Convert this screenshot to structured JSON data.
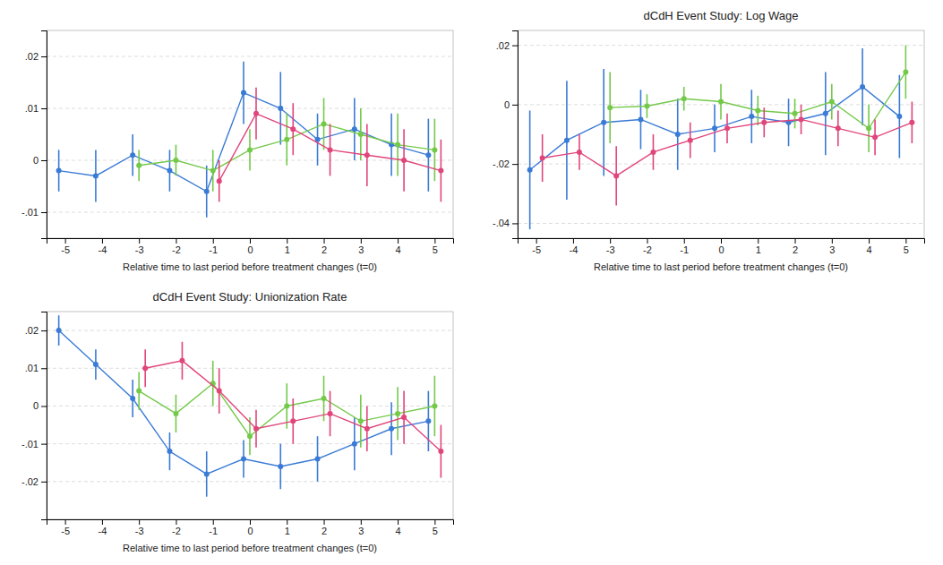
{
  "chart_data": [
    {
      "type": "line",
      "x": [
        -5,
        -4,
        -3,
        -2,
        -1,
        0,
        1,
        2,
        3,
        4,
        5
      ],
      "xlim": [
        -5.5,
        5.5
      ],
      "xticks": [
        -5,
        -4,
        -3,
        -2,
        -1,
        0,
        1,
        2,
        3,
        4,
        5
      ],
      "ylim": [
        -0.015,
        0.025
      ],
      "yticks": [
        {
          "value": -0.01,
          "label": "-.01"
        },
        0,
        {
          "value": 0.01,
          "label": ".01"
        },
        {
          "value": 0.02,
          "label": ".02"
        }
      ],
      "x_label": "Relative time to last period before treatment changes (t=0)",
      "grid": true,
      "marker": "circle",
      "series": [
        {
          "color": "#3a7bd5",
          "values": [
            -0.002,
            -0.003,
            0.001,
            -0.002,
            -0.006,
            0.013,
            0.01,
            0.004,
            0.006,
            0.003,
            0.001
          ],
          "errors": [
            0.004,
            0.005,
            0.004,
            0.004,
            0.005,
            0.006,
            0.007,
            0.005,
            0.006,
            0.006,
            0.007
          ]
        },
        {
          "color": "#74c94a",
          "values": [
            null,
            null,
            -0.001,
            0.0,
            -0.002,
            0.002,
            0.004,
            0.007,
            0.005,
            0.003,
            0.002
          ],
          "errors": [
            null,
            null,
            0.003,
            0.003,
            0.004,
            0.004,
            0.005,
            0.005,
            0.005,
            0.006,
            0.006
          ]
        },
        {
          "color": "#e0457b",
          "values": [
            null,
            null,
            null,
            null,
            -0.004,
            0.009,
            0.006,
            0.002,
            0.001,
            0.0,
            -0.002
          ],
          "errors": [
            null,
            null,
            null,
            null,
            0.004,
            0.005,
            0.005,
            0.005,
            0.006,
            0.006,
            0.006
          ]
        }
      ]
    },
    {
      "type": "line",
      "title": "dCdH Event Study: Log Wage",
      "x": [
        -5,
        -4,
        -3,
        -2,
        -1,
        0,
        1,
        2,
        3,
        4,
        5
      ],
      "xlim": [
        -5.5,
        5.5
      ],
      "xticks": [
        -5,
        -4,
        -3,
        -2,
        -1,
        0,
        1,
        2,
        3,
        4,
        5
      ],
      "ylim": [
        -0.045,
        0.025
      ],
      "yticks": [
        {
          "value": -0.04,
          "label": "-.04"
        },
        {
          "value": -0.02,
          "label": "-.02"
        },
        0,
        {
          "value": 0.02,
          "label": ".02"
        }
      ],
      "x_label": "Relative time to last period before treatment changes (t=0)",
      "grid": true,
      "marker": "circle",
      "series": [
        {
          "color": "#3a7bd5",
          "values": [
            -0.022,
            -0.012,
            -0.006,
            -0.005,
            -0.01,
            -0.008,
            -0.004,
            -0.006,
            -0.003,
            0.006,
            -0.004
          ],
          "errors": [
            0.02,
            0.02,
            0.018,
            0.01,
            0.012,
            0.008,
            0.009,
            0.008,
            0.014,
            0.013,
            0.014
          ]
        },
        {
          "color": "#74c94a",
          "values": [
            null,
            null,
            -0.001,
            -0.0005,
            0.002,
            0.001,
            -0.002,
            -0.003,
            0.001,
            -0.008,
            0.011
          ],
          "errors": [
            null,
            null,
            0.012,
            0.004,
            0.004,
            0.006,
            0.005,
            0.005,
            0.006,
            0.008,
            0.009
          ]
        },
        {
          "color": "#e0457b",
          "values": [
            -0.018,
            -0.016,
            -0.024,
            -0.016,
            -0.012,
            -0.008,
            -0.006,
            -0.005,
            -0.008,
            -0.011,
            -0.006
          ],
          "errors": [
            0.008,
            0.006,
            0.01,
            0.006,
            0.006,
            0.005,
            0.005,
            0.005,
            0.006,
            0.006,
            0.007
          ]
        }
      ]
    },
    {
      "type": "line",
      "title": "dCdH Event Study: Unionization Rate",
      "x": [
        -5,
        -4,
        -3,
        -2,
        -1,
        0,
        1,
        2,
        3,
        4,
        5
      ],
      "xlim": [
        -5.5,
        5.5
      ],
      "xticks": [
        -5,
        -4,
        -3,
        -2,
        -1,
        0,
        1,
        2,
        3,
        4,
        5
      ],
      "ylim": [
        -0.03,
        0.025
      ],
      "yticks": [
        {
          "value": -0.02,
          "label": "-.02"
        },
        {
          "value": -0.01,
          "label": "-.01"
        },
        0,
        {
          "value": 0.01,
          "label": ".01"
        },
        {
          "value": 0.02,
          "label": ".02"
        }
      ],
      "x_label": "Relative time to last period before treatment changes (t=0)",
      "grid": true,
      "marker": "circle",
      "series": [
        {
          "color": "#3a7bd5",
          "values": [
            0.02,
            0.011,
            0.002,
            -0.012,
            -0.018,
            -0.014,
            -0.016,
            -0.014,
            -0.01,
            -0.006,
            -0.004
          ],
          "errors": [
            0.004,
            0.004,
            0.005,
            0.005,
            0.006,
            0.005,
            0.006,
            0.006,
            0.007,
            0.007,
            0.008
          ]
        },
        {
          "color": "#74c94a",
          "values": [
            null,
            null,
            0.004,
            -0.002,
            0.006,
            -0.008,
            0.0,
            0.002,
            -0.004,
            -0.002,
            0.0
          ],
          "errors": [
            null,
            null,
            0.005,
            0.005,
            0.006,
            0.005,
            0.006,
            0.006,
            0.007,
            0.007,
            0.008
          ]
        },
        {
          "color": "#e0457b",
          "values": [
            null,
            null,
            0.01,
            0.012,
            0.004,
            -0.006,
            -0.004,
            -0.002,
            -0.006,
            -0.003,
            -0.012
          ],
          "errors": [
            null,
            null,
            0.005,
            0.005,
            0.006,
            0.005,
            0.006,
            0.006,
            0.006,
            0.007,
            0.007
          ]
        }
      ]
    }
  ]
}
